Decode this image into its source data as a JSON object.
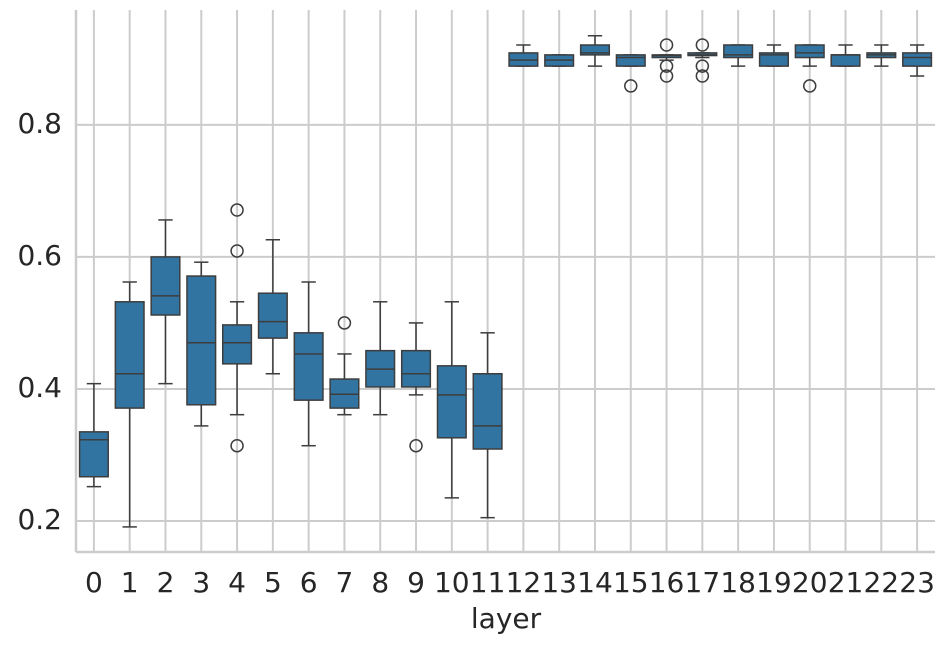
{
  "chart_data": {
    "type": "box",
    "xlabel": "layer",
    "categories": [
      "0",
      "1",
      "2",
      "3",
      "4",
      "5",
      "6",
      "7",
      "8",
      "9",
      "10",
      "11",
      "12",
      "13",
      "14",
      "15",
      "16",
      "17",
      "18",
      "19",
      "20",
      "21",
      "22",
      "23"
    ],
    "boxes": [
      {
        "whislo": 0.252,
        "q1": 0.267,
        "med": 0.323,
        "q3": 0.335,
        "whishi": 0.408,
        "fliers": []
      },
      {
        "whislo": 0.191,
        "q1": 0.371,
        "med": 0.423,
        "q3": 0.532,
        "whishi": 0.562,
        "fliers": []
      },
      {
        "whislo": 0.408,
        "q1": 0.512,
        "med": 0.541,
        "q3": 0.6,
        "whishi": 0.656,
        "fliers": []
      },
      {
        "whislo": 0.344,
        "q1": 0.376,
        "med": 0.47,
        "q3": 0.571,
        "whishi": 0.592,
        "fliers": []
      },
      {
        "whislo": 0.361,
        "q1": 0.438,
        "med": 0.47,
        "q3": 0.497,
        "whishi": 0.532,
        "fliers": [
          0.671,
          0.609,
          0.314
        ]
      },
      {
        "whislo": 0.423,
        "q1": 0.477,
        "med": 0.502,
        "q3": 0.545,
        "whishi": 0.626,
        "fliers": []
      },
      {
        "whislo": 0.314,
        "q1": 0.383,
        "med": 0.453,
        "q3": 0.485,
        "whishi": 0.562,
        "fliers": []
      },
      {
        "whislo": 0.361,
        "q1": 0.371,
        "med": 0.392,
        "q3": 0.415,
        "whishi": 0.453,
        "fliers": [
          0.5
        ]
      },
      {
        "whislo": 0.361,
        "q1": 0.403,
        "med": 0.43,
        "q3": 0.458,
        "whishi": 0.532,
        "fliers": []
      },
      {
        "whislo": 0.391,
        "q1": 0.403,
        "med": 0.423,
        "q3": 0.458,
        "whishi": 0.5,
        "fliers": [
          0.314
        ]
      },
      {
        "whislo": 0.235,
        "q1": 0.326,
        "med": 0.391,
        "q3": 0.435,
        "whishi": 0.532,
        "fliers": []
      },
      {
        "whislo": 0.205,
        "q1": 0.309,
        "med": 0.344,
        "q3": 0.423,
        "whishi": 0.485,
        "fliers": []
      },
      {
        "whislo": 0.889,
        "q1": 0.889,
        "med": 0.898,
        "q3": 0.909,
        "whishi": 0.921,
        "fliers": []
      },
      {
        "whislo": 0.889,
        "q1": 0.889,
        "med": 0.898,
        "q3": 0.906,
        "whishi": 0.906,
        "fliers": []
      },
      {
        "whislo": 0.889,
        "q1": 0.906,
        "med": 0.909,
        "q3": 0.921,
        "whishi": 0.935,
        "fliers": []
      },
      {
        "whislo": 0.889,
        "q1": 0.889,
        "med": 0.902,
        "q3": 0.906,
        "whishi": 0.906,
        "fliers": [
          0.859
        ]
      },
      {
        "whislo": 0.898,
        "q1": 0.902,
        "med": 0.905,
        "q3": 0.906,
        "whishi": 0.906,
        "fliers": [
          0.921,
          0.889,
          0.874
        ]
      },
      {
        "whislo": 0.902,
        "q1": 0.905,
        "med": 0.906,
        "q3": 0.909,
        "whishi": 0.909,
        "fliers": [
          0.921,
          0.889,
          0.874
        ]
      },
      {
        "whislo": 0.889,
        "q1": 0.902,
        "med": 0.906,
        "q3": 0.921,
        "whishi": 0.921,
        "fliers": []
      },
      {
        "whislo": 0.889,
        "q1": 0.889,
        "med": 0.906,
        "q3": 0.909,
        "whishi": 0.921,
        "fliers": []
      },
      {
        "whislo": 0.889,
        "q1": 0.902,
        "med": 0.909,
        "q3": 0.921,
        "whishi": 0.921,
        "fliers": [
          0.859
        ]
      },
      {
        "whislo": 0.889,
        "q1": 0.889,
        "med": 0.906,
        "q3": 0.906,
        "whishi": 0.921,
        "fliers": []
      },
      {
        "whislo": 0.889,
        "q1": 0.902,
        "med": 0.906,
        "q3": 0.909,
        "whishi": 0.921,
        "fliers": []
      },
      {
        "whislo": 0.874,
        "q1": 0.889,
        "med": 0.902,
        "q3": 0.909,
        "whishi": 0.921,
        "fliers": []
      }
    ],
    "color": "#3274a1",
    "line_color": "#3d3d3d",
    "ylim": [
      0.153,
      0.974
    ],
    "yticks": [
      0.2,
      0.4,
      0.6,
      0.8
    ],
    "grid": true
  }
}
